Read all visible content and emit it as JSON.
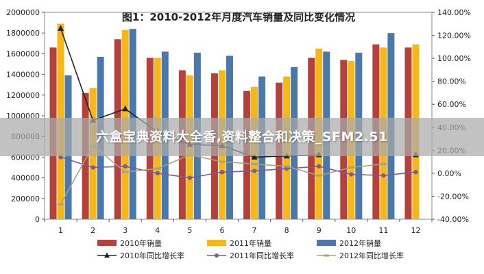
{
  "watermark_text": "六盒宝典资料大全香,资料整合和决策_SFM2.51",
  "chart_data": {
    "type": "bar",
    "title": "图1：2010-2012年月度汽车销量及同比变化情况",
    "categories": [
      "1",
      "2",
      "3",
      "4",
      "5",
      "6",
      "7",
      "8",
      "9",
      "10",
      "11",
      "12"
    ],
    "y_left": {
      "min": 0,
      "max": 2000000,
      "step": 200000,
      "tick_labels": [
        "0",
        "200000",
        "400000",
        "600000",
        "800000",
        "1000000",
        "1200000",
        "1400000",
        "1600000",
        "1800000",
        "2000000"
      ]
    },
    "y_right": {
      "min": -40,
      "max": 140,
      "step": 20,
      "tick_labels": [
        "-40.00%",
        "-20.00%",
        "0.00%",
        "20.00%",
        "40.00%",
        "60.00%",
        "80.00%",
        "100.00%",
        "120.00%",
        "140.00%"
      ]
    },
    "bar_series": [
      {
        "name": "2010年销量",
        "color": "#b5403c",
        "values": [
          1660000,
          1220000,
          1740000,
          1560000,
          1440000,
          1410000,
          1240000,
          1320000,
          1560000,
          1540000,
          1690000,
          1660000
        ]
      },
      {
        "name": "2011年销量",
        "color": "#f6b817",
        "values": [
          1890000,
          1270000,
          1830000,
          1560000,
          1390000,
          1440000,
          1280000,
          1380000,
          1650000,
          1530000,
          1660000,
          1690000
        ]
      },
      {
        "name": "2012年销量",
        "color": "#4a78ad",
        "values": [
          1390000,
          1570000,
          1840000,
          1620000,
          1610000,
          1580000,
          1380000,
          1470000,
          1620000,
          1610000,
          1800000,
          null
        ]
      }
    ],
    "line_series": [
      {
        "name": "2010年同比增长率",
        "color": "#222222",
        "marker": "triangle",
        "values": [
          126,
          46,
          56,
          36,
          25,
          24,
          14,
          15,
          16,
          null,
          null,
          16
        ]
      },
      {
        "name": "2011年同比增长率",
        "color": "#7a5c9a",
        "marker": "circle",
        "values": [
          14,
          5,
          6,
          0,
          -4,
          1,
          2,
          4,
          6,
          -1,
          -2,
          1
        ]
      },
      {
        "name": "2012年同比增长率",
        "color": "#a8a47a",
        "marker": "dash",
        "values": [
          -27,
          24,
          1,
          4,
          16,
          10,
          8,
          6,
          -2,
          5,
          8,
          null
        ]
      }
    ],
    "legend": {
      "position": "bottom",
      "row1": [
        "2010年销量",
        "2011年销量",
        "2012年销量"
      ],
      "row2": [
        "2010年同比增长率",
        "2011年同比增长率",
        "2012年同比增长率"
      ]
    }
  }
}
